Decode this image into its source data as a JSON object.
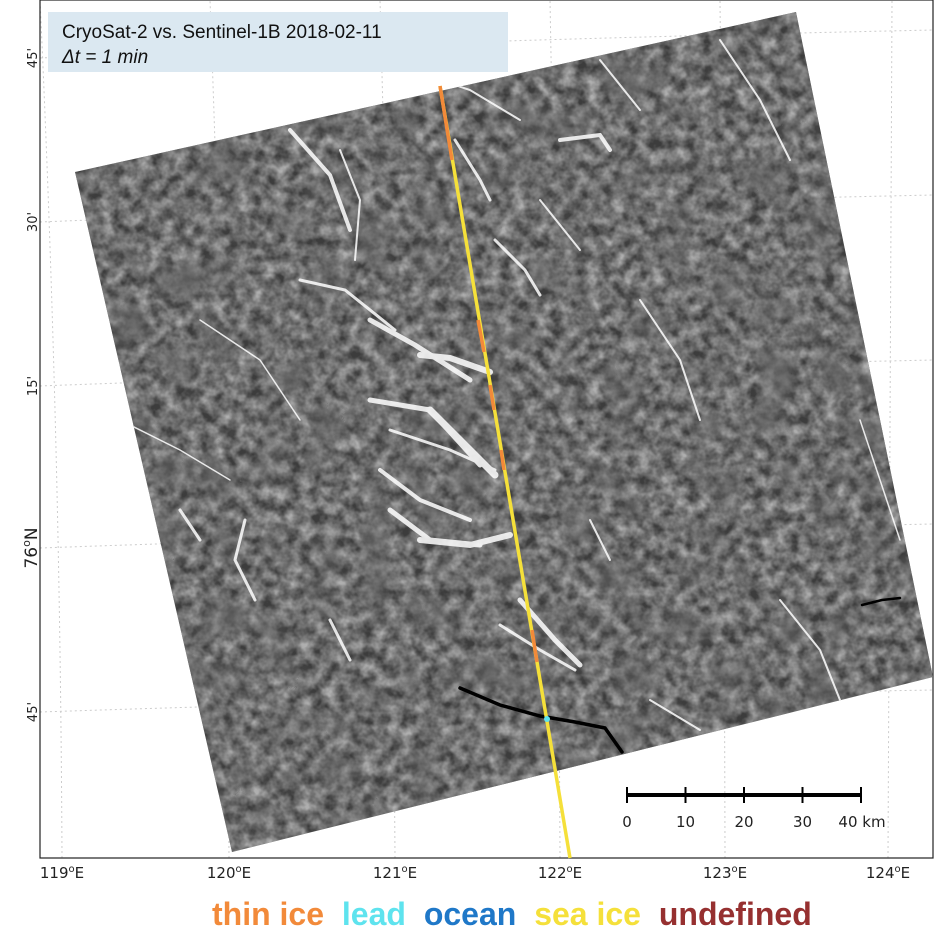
{
  "title": {
    "line1": "CryoSat-2 vs. Sentinel-1B 2018-02-11",
    "line2": "Δt = 1 min"
  },
  "longitude_labels": [
    {
      "deg": "119",
      "sup": "o",
      "dir": "E"
    },
    {
      "deg": "120",
      "sup": "o",
      "dir": "E"
    },
    {
      "deg": "121",
      "sup": "o",
      "dir": "E"
    },
    {
      "deg": "122",
      "sup": "o",
      "dir": "E"
    },
    {
      "deg": "123",
      "sup": "o",
      "dir": "E"
    },
    {
      "deg": "124",
      "sup": "o",
      "dir": "E"
    }
  ],
  "latitude_labels": [
    {
      "text": "45'"
    },
    {
      "text": "30'"
    },
    {
      "text": "15'"
    },
    {
      "text": "76",
      "sup": "o",
      "dir": "N"
    },
    {
      "text": "45'"
    }
  ],
  "scale_bar": {
    "ticks": [
      "0",
      "10",
      "20",
      "30",
      "40 km"
    ]
  },
  "legend": [
    {
      "label": "thin ice",
      "color": "#f28a3a"
    },
    {
      "label": "lead",
      "color": "#5ee3ee"
    },
    {
      "label": "ocean",
      "color": "#1f78c8"
    },
    {
      "label": "sea ice",
      "color": "#f5e03a"
    },
    {
      "label": "undefined",
      "color": "#963030"
    }
  ],
  "colors": {
    "track": "#f5e03a",
    "thin_ice": "#f28a3a",
    "lead": "#5ee3ee",
    "scene_fill": "#3a3a3a",
    "grid": "#c8c8c8"
  }
}
